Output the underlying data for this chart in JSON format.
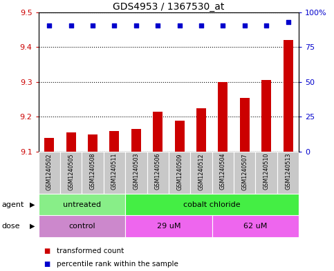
{
  "title": "GDS4953 / 1367530_at",
  "samples": [
    "GSM1240502",
    "GSM1240505",
    "GSM1240508",
    "GSM1240511",
    "GSM1240503",
    "GSM1240506",
    "GSM1240509",
    "GSM1240512",
    "GSM1240504",
    "GSM1240507",
    "GSM1240510",
    "GSM1240513"
  ],
  "bar_values": [
    9.14,
    9.155,
    9.15,
    9.16,
    9.165,
    9.215,
    9.19,
    9.225,
    9.3,
    9.255,
    9.305,
    9.42
  ],
  "bar_base": 9.1,
  "percentile_values": [
    9.462,
    9.462,
    9.462,
    9.462,
    9.462,
    9.462,
    9.462,
    9.462,
    9.462,
    9.462,
    9.462,
    9.472
  ],
  "bar_color": "#cc0000",
  "percentile_color": "#0000cc",
  "ylim": [
    9.1,
    9.5
  ],
  "yticks_left": [
    9.1,
    9.2,
    9.3,
    9.4,
    9.5
  ],
  "yticks_right": [
    0,
    25,
    50,
    75,
    100
  ],
  "ylabel_left_color": "#cc0000",
  "ylabel_right_color": "#0000cc",
  "agent_groups": [
    {
      "label": "untreated",
      "start": 0,
      "end": 4,
      "color": "#88ee88"
    },
    {
      "label": "cobalt chloride",
      "start": 4,
      "end": 12,
      "color": "#44ee44"
    }
  ],
  "dose_groups": [
    {
      "label": "control",
      "start": 0,
      "end": 4,
      "color": "#cc88cc"
    },
    {
      "label": "29 uM",
      "start": 4,
      "end": 8,
      "color": "#ee66ee"
    },
    {
      "label": "62 uM",
      "start": 8,
      "end": 12,
      "color": "#ee66ee"
    }
  ],
  "xlabel_agent": "agent",
  "xlabel_dose": "dose",
  "legend_items": [
    {
      "label": "transformed count",
      "color": "#cc0000"
    },
    {
      "label": "percentile rank within the sample",
      "color": "#0000cc"
    }
  ],
  "bar_width": 0.45,
  "figure_bg_color": "#ffffff"
}
